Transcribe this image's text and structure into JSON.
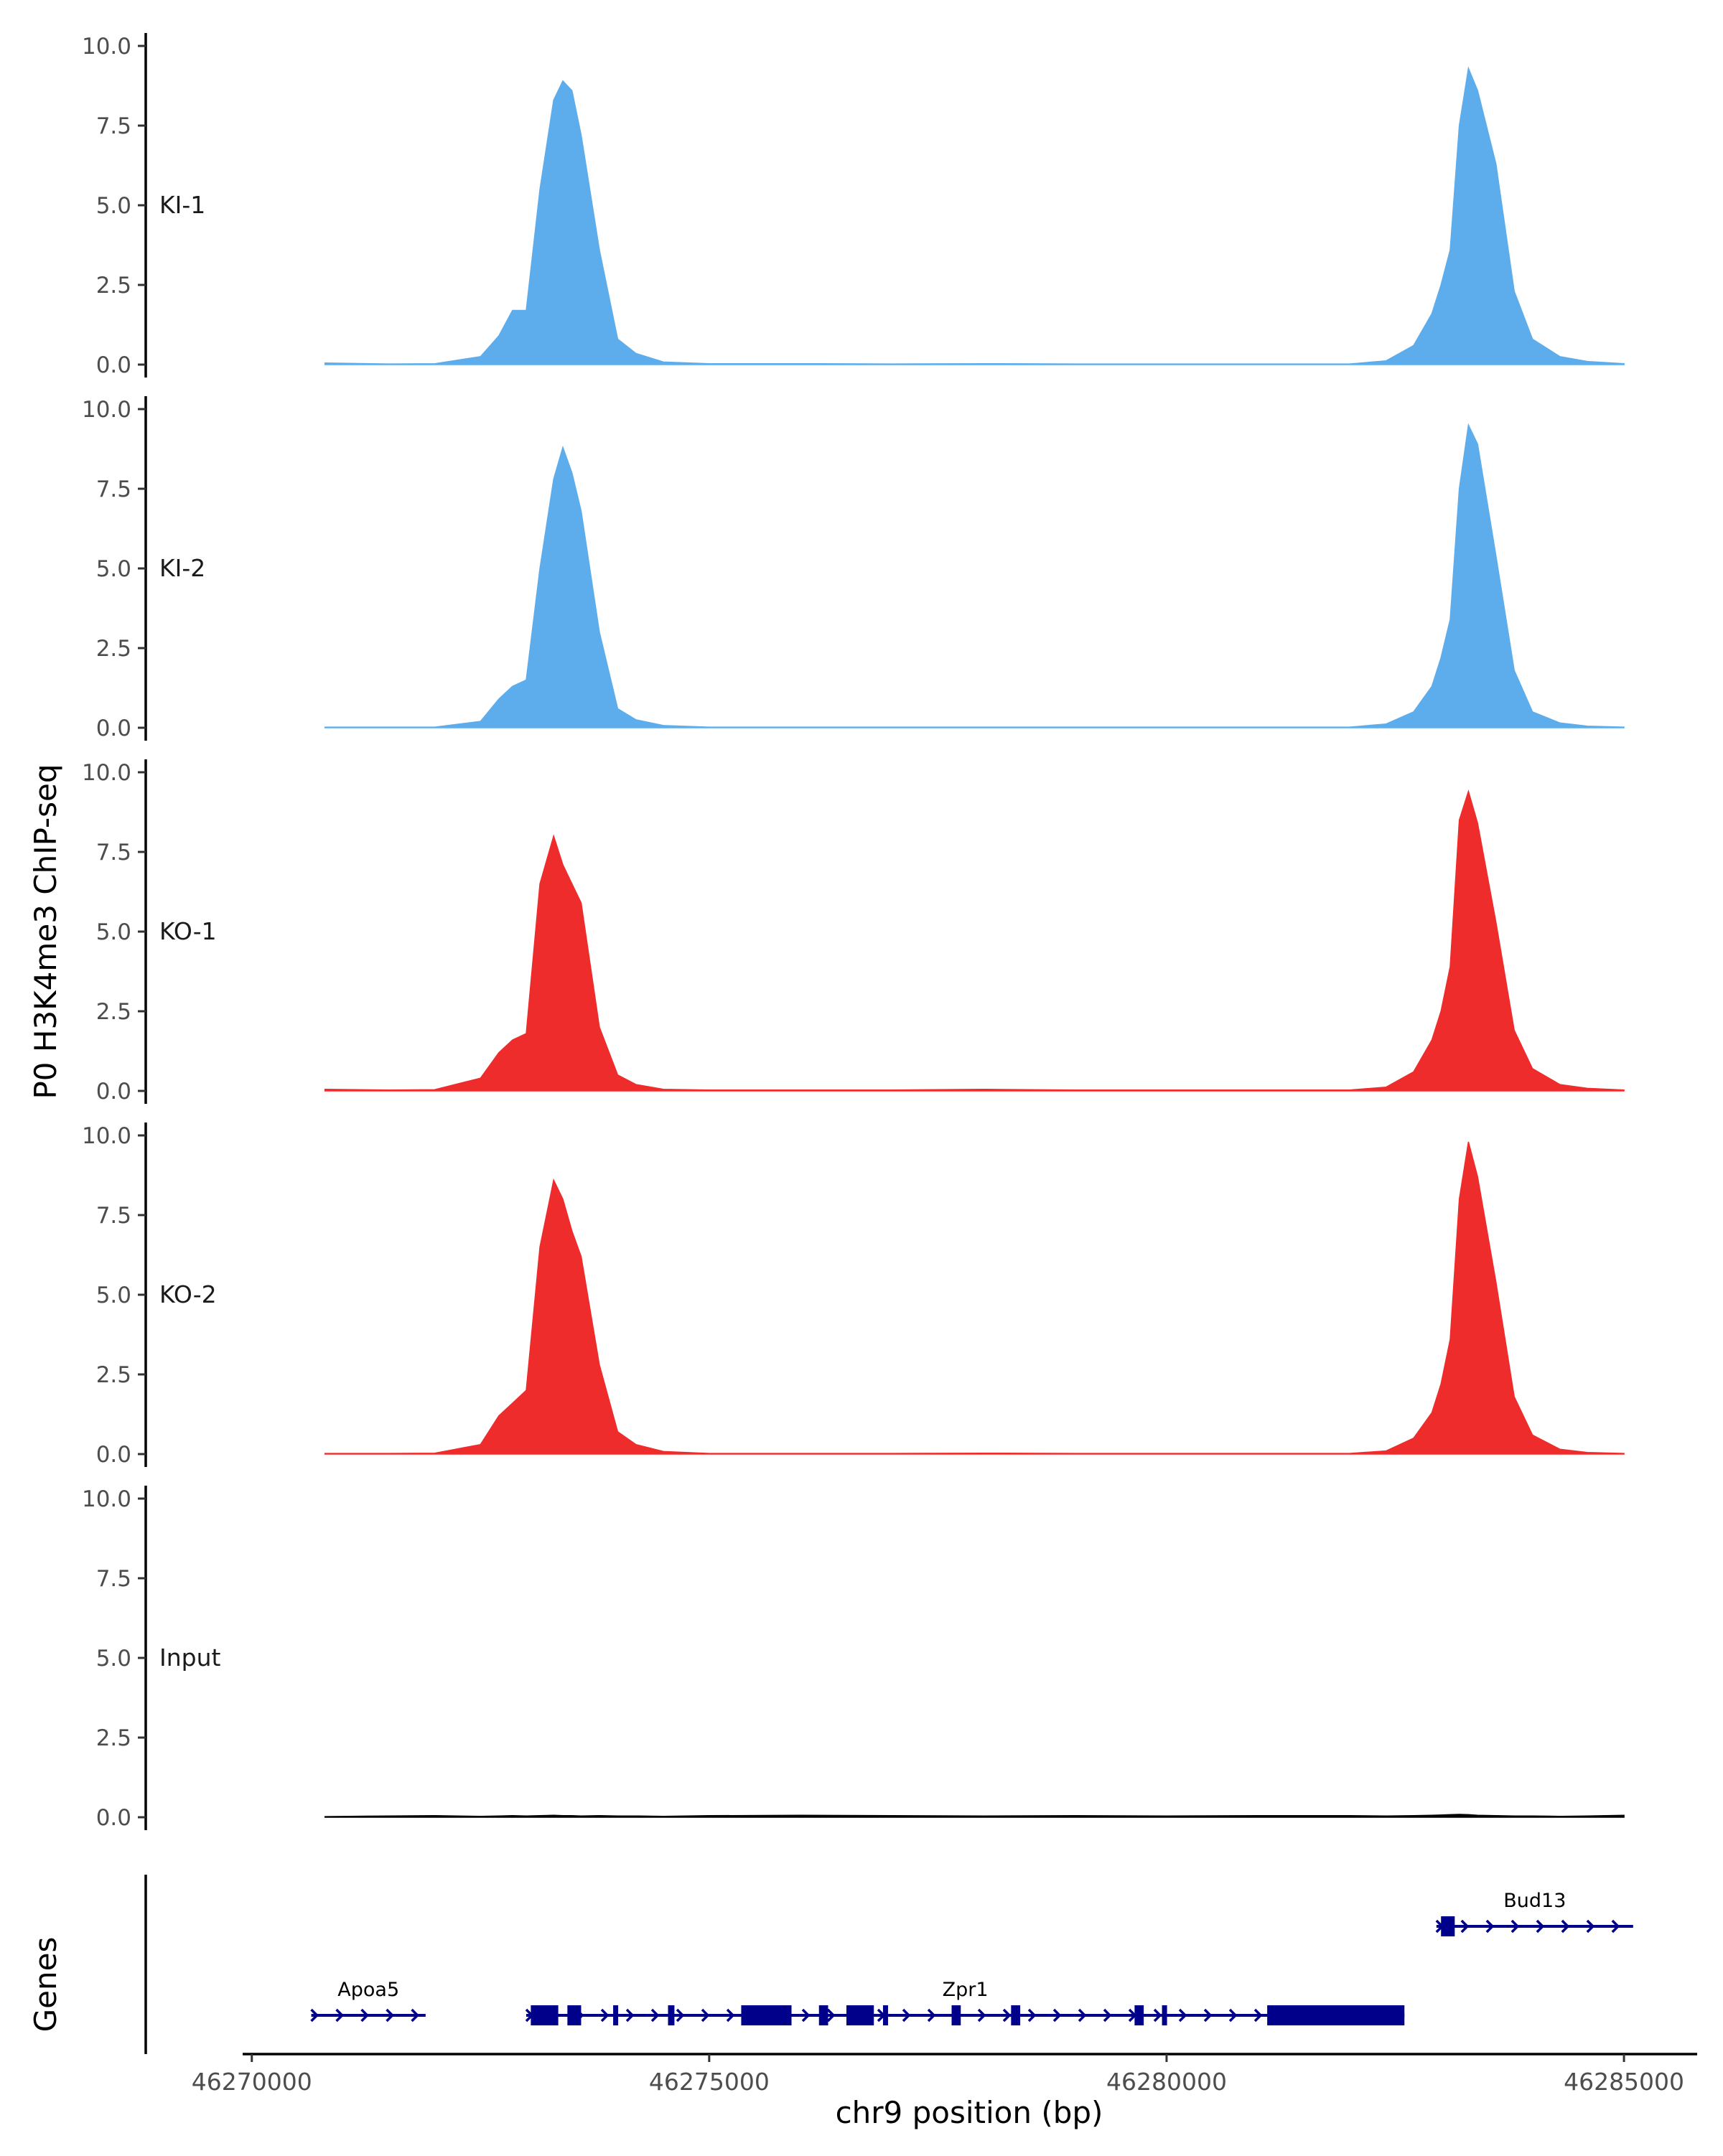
{
  "chart_data": {
    "type": "area",
    "ylabel": "P0 H3K4me3 ChIP-seq",
    "xlabel": "chr9 position (bp)",
    "xlim": [
      46269900,
      46285800
    ],
    "ylim": [
      0,
      10
    ],
    "x_ticks": [
      46270000,
      46275000,
      46280000,
      46285000
    ],
    "x_tick_labels": [
      "46270000",
      "46275000",
      "46280000",
      "46285000"
    ],
    "y_ticks": [
      0,
      2.5,
      5,
      7.5,
      10
    ],
    "y_tick_labels": [
      "0.0",
      "2.5",
      "5.0",
      "7.5",
      "10.0"
    ],
    "x": [
      46270800,
      46271500,
      46272000,
      46272500,
      46272700,
      46272850,
      46273000,
      46273150,
      46273300,
      46273400,
      46273500,
      46273600,
      46273800,
      46274000,
      46274200,
      46274500,
      46275000,
      46276000,
      46277000,
      46278000,
      46279000,
      46280000,
      46281000,
      46282000,
      46282400,
      46282700,
      46282900,
      46283000,
      46283100,
      46283200,
      46283300,
      46283400,
      46283600,
      46283800,
      46284000,
      46284300,
      46284600,
      46285000
    ],
    "series": [
      {
        "name": "KI-1",
        "color": "#5DADEC",
        "values": [
          0.05,
          0.02,
          0.03,
          0.25,
          0.9,
          1.7,
          1.7,
          5.5,
          8.3,
          8.9,
          8.6,
          7.2,
          3.6,
          0.8,
          0.35,
          0.08,
          0.03,
          0.03,
          0.02,
          0.03,
          0.02,
          0.02,
          0.02,
          0.02,
          0.12,
          0.6,
          1.6,
          2.5,
          3.6,
          7.5,
          9.3,
          8.6,
          6.3,
          2.3,
          0.8,
          0.25,
          0.1,
          0.03
        ]
      },
      {
        "name": "KI-2",
        "color": "#5DADEC",
        "values": [
          0.02,
          0.02,
          0.02,
          0.2,
          0.9,
          1.3,
          1.5,
          5.0,
          7.8,
          8.8,
          8.0,
          6.8,
          3.0,
          0.6,
          0.25,
          0.07,
          0.02,
          0.02,
          0.02,
          0.02,
          0.02,
          0.02,
          0.02,
          0.02,
          0.12,
          0.5,
          1.3,
          2.2,
          3.4,
          7.5,
          9.5,
          8.9,
          5.4,
          1.8,
          0.5,
          0.15,
          0.05,
          0.02
        ]
      },
      {
        "name": "KO-1",
        "color": "#EE2C2C",
        "values": [
          0.05,
          0.03,
          0.04,
          0.4,
          1.2,
          1.6,
          1.8,
          6.5,
          8.0,
          7.1,
          6.5,
          5.9,
          2.0,
          0.5,
          0.2,
          0.05,
          0.03,
          0.03,
          0.03,
          0.05,
          0.03,
          0.03,
          0.03,
          0.03,
          0.12,
          0.6,
          1.6,
          2.5,
          3.9,
          8.5,
          9.4,
          8.4,
          5.3,
          1.9,
          0.7,
          0.2,
          0.08,
          0.03
        ]
      },
      {
        "name": "KO-2",
        "color": "#EE2C2C",
        "values": [
          0.02,
          0.02,
          0.03,
          0.3,
          1.2,
          1.6,
          2.0,
          6.5,
          8.6,
          8.0,
          7.0,
          6.2,
          2.8,
          0.7,
          0.3,
          0.08,
          0.02,
          0.02,
          0.02,
          0.03,
          0.02,
          0.02,
          0.02,
          0.02,
          0.1,
          0.5,
          1.3,
          2.2,
          3.6,
          8.0,
          9.8,
          8.7,
          5.4,
          1.8,
          0.6,
          0.15,
          0.05,
          0.02
        ]
      },
      {
        "name": "Input",
        "color": "#000000",
        "values": [
          0.02,
          0.04,
          0.05,
          0.03,
          0.04,
          0.05,
          0.04,
          0.05,
          0.06,
          0.05,
          0.05,
          0.04,
          0.05,
          0.04,
          0.04,
          0.03,
          0.05,
          0.06,
          0.05,
          0.04,
          0.05,
          0.04,
          0.05,
          0.05,
          0.04,
          0.05,
          0.06,
          0.07,
          0.08,
          0.09,
          0.08,
          0.06,
          0.05,
          0.04,
          0.04,
          0.03,
          0.04,
          0.06
        ]
      }
    ],
    "genes_track": {
      "ylabel": "Genes",
      "color": "#00008B",
      "genes": [
        {
          "name": "Apoa5",
          "row": 1,
          "start": 46270650,
          "end": 46271900,
          "exons": []
        },
        {
          "name": "Zpr1",
          "row": 1,
          "start": 46273000,
          "end": 46282600,
          "exons": [
            [
              46273050,
              46273350
            ],
            [
              46273450,
              46273600
            ],
            [
              46273950,
              46274000
            ],
            [
              46274550,
              46274620
            ],
            [
              46275350,
              46275900
            ],
            [
              46276200,
              46276300
            ],
            [
              46276500,
              46276800
            ],
            [
              46276900,
              46276950
            ],
            [
              46277650,
              46277750
            ],
            [
              46278300,
              46278400
            ],
            [
              46279650,
              46279750
            ],
            [
              46279950,
              46280000
            ],
            [
              46281100,
              46282600
            ]
          ]
        },
        {
          "name": "Bud13",
          "row": 0,
          "start": 46282950,
          "end": 46285100,
          "exons": [
            [
              46283000,
              46283150
            ]
          ]
        }
      ]
    }
  }
}
